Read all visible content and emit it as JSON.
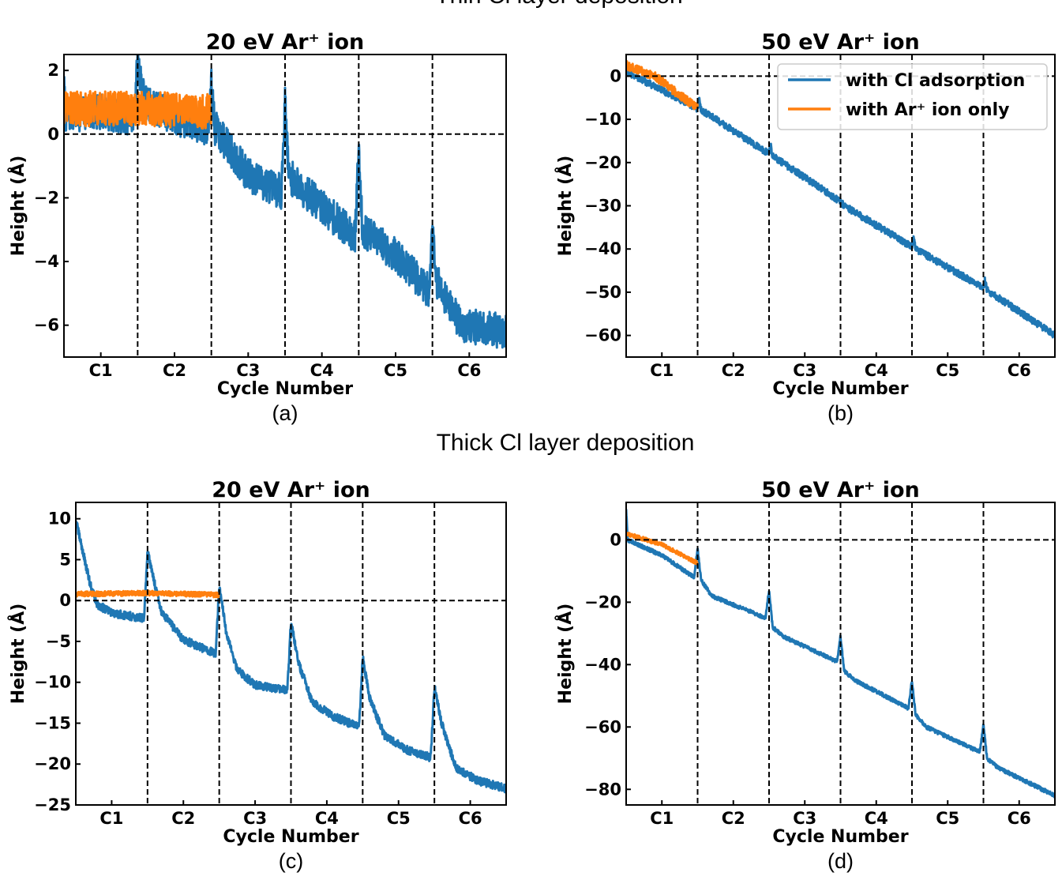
{
  "figure": {
    "section_titles": [
      "Thin Cl layer deposition",
      "Thick Cl layer deposition"
    ]
  },
  "colors": {
    "with_cl": "#1f77b4",
    "ar_only": "#ff7f0e"
  },
  "chart_data": [
    {
      "type": "line",
      "subplot_label": "(a)",
      "title": "20 eV Ar⁺ ion",
      "xlabel": "Cycle Number",
      "ylabel": "Height (Å)",
      "categories": [
        "C1",
        "C2",
        "C3",
        "C4",
        "C5",
        "C6"
      ],
      "xlim": [
        0.5,
        6.5
      ],
      "ylim": [
        -7,
        2.5
      ],
      "yticks": [
        2,
        0,
        -2,
        -4,
        -6
      ],
      "ytick_labels": [
        "2",
        "0",
        "−2",
        "−4",
        "−6"
      ],
      "cycle_boundaries": [
        1.5,
        2.5,
        3.5,
        4.5,
        5.5
      ],
      "reference_line_y": 0,
      "legend": null,
      "series": [
        {
          "name": "with Cl adsorption",
          "color_key": "with_cl",
          "noise": 0.55,
          "points": [
            [
              0.5,
              1.5
            ],
            [
              0.52,
              0.6
            ],
            [
              1.0,
              0.7
            ],
            [
              1.45,
              0.5
            ],
            [
              1.5,
              2.3
            ],
            [
              1.6,
              1.0
            ],
            [
              2.0,
              0.5
            ],
            [
              2.45,
              0.2
            ],
            [
              2.5,
              1.5
            ],
            [
              2.55,
              0.2
            ],
            [
              3.0,
              -1.3
            ],
            [
              3.45,
              -1.8
            ],
            [
              3.5,
              1.0
            ],
            [
              3.55,
              -1.3
            ],
            [
              4.0,
              -2.3
            ],
            [
              4.45,
              -3.2
            ],
            [
              4.5,
              -0.5
            ],
            [
              4.55,
              -3.0
            ],
            [
              5.0,
              -3.8
            ],
            [
              5.45,
              -4.9
            ],
            [
              5.5,
              -3.0
            ],
            [
              5.55,
              -4.6
            ],
            [
              5.9,
              -6.0
            ],
            [
              6.5,
              -6.2
            ]
          ]
        },
        {
          "name": "with Ar⁺ ion only",
          "color_key": "ar_only",
          "noise": 0.55,
          "points": [
            [
              0.5,
              0.8
            ],
            [
              1.5,
              0.8
            ],
            [
              2.5,
              0.7
            ]
          ]
        }
      ]
    },
    {
      "type": "line",
      "subplot_label": "(b)",
      "title": "50 eV Ar⁺ ion",
      "xlabel": "Cycle Number",
      "ylabel": "Height (Å)",
      "categories": [
        "C1",
        "C2",
        "C3",
        "C4",
        "C5",
        "C6"
      ],
      "xlim": [
        0.5,
        6.5
      ],
      "ylim": [
        -65,
        5
      ],
      "yticks": [
        0,
        -10,
        -20,
        -30,
        -40,
        -50,
        -60
      ],
      "ytick_labels": [
        "0",
        "−10",
        "−20",
        "−30",
        "−40",
        "−50",
        "−60"
      ],
      "cycle_boundaries": [
        1.5,
        2.5,
        3.5,
        4.5,
        5.5
      ],
      "reference_line_y": 0,
      "legend": {
        "location": "top-right",
        "entries": [
          "with Cl adsorption",
          "with Ar⁺ ion only"
        ]
      },
      "series": [
        {
          "name": "with Cl adsorption",
          "color_key": "with_cl",
          "noise": 0.8,
          "points": [
            [
              0.5,
              1.0
            ],
            [
              1.5,
              -7.5
            ],
            [
              1.52,
              -5.5
            ],
            [
              1.55,
              -7.8
            ],
            [
              2.5,
              -18
            ],
            [
              2.52,
              -15.5
            ],
            [
              2.55,
              -18.5
            ],
            [
              3.5,
              -29
            ],
            [
              3.55,
              -30
            ],
            [
              4.5,
              -39.5
            ],
            [
              4.52,
              -37.5
            ],
            [
              4.55,
              -40
            ],
            [
              5.5,
              -49
            ],
            [
              5.52,
              -47
            ],
            [
              5.55,
              -49.5
            ],
            [
              6.5,
              -60
            ]
          ]
        },
        {
          "name": "with Ar⁺ ion only",
          "color_key": "ar_only",
          "noise": 1.0,
          "points": [
            [
              0.5,
              2.5
            ],
            [
              0.9,
              0
            ],
            [
              1.5,
              -7.5
            ]
          ]
        }
      ]
    },
    {
      "type": "line",
      "subplot_label": "(c)",
      "title": "20 eV Ar⁺ ion",
      "xlabel": "Cycle Number",
      "ylabel": "Height (Å)",
      "categories": [
        "C1",
        "C2",
        "C3",
        "C4",
        "C5",
        "C6"
      ],
      "xlim": [
        0.5,
        6.5
      ],
      "ylim": [
        -25,
        12
      ],
      "yticks": [
        10,
        5,
        0,
        -5,
        -10,
        -15,
        -20,
        -25
      ],
      "ytick_labels": [
        "10",
        "5",
        "0",
        "−5",
        "−10",
        "−15",
        "−20",
        "−25"
      ],
      "cycle_boundaries": [
        1.5,
        2.5,
        3.5,
        4.5,
        5.5
      ],
      "reference_line_y": 0,
      "legend": null,
      "series": [
        {
          "name": "with Cl adsorption",
          "color_key": "with_cl",
          "noise": 0.5,
          "points": [
            [
              0.5,
              9.8
            ],
            [
              0.7,
              2.0
            ],
            [
              0.8,
              -0.5
            ],
            [
              1.0,
              -1.5
            ],
            [
              1.45,
              -2.2
            ],
            [
              1.5,
              6.0
            ],
            [
              1.6,
              2.0
            ],
            [
              1.7,
              -1.5
            ],
            [
              2.0,
              -4.8
            ],
            [
              2.45,
              -6.5
            ],
            [
              2.5,
              1.8
            ],
            [
              2.6,
              -4.0
            ],
            [
              2.75,
              -8.5
            ],
            [
              3.0,
              -10.3
            ],
            [
              3.45,
              -11.0
            ],
            [
              3.5,
              -2.5
            ],
            [
              3.6,
              -7.5
            ],
            [
              3.8,
              -12.5
            ],
            [
              4.1,
              -14.2
            ],
            [
              4.45,
              -15.5
            ],
            [
              4.5,
              -7.0
            ],
            [
              4.6,
              -12.0
            ],
            [
              4.8,
              -16.5
            ],
            [
              5.1,
              -18.2
            ],
            [
              5.45,
              -19.2
            ],
            [
              5.5,
              -10.5
            ],
            [
              5.6,
              -15.0
            ],
            [
              5.8,
              -20.5
            ],
            [
              6.1,
              -22.0
            ],
            [
              6.5,
              -23.0
            ]
          ]
        },
        {
          "name": "with Ar⁺ ion only",
          "color_key": "ar_only",
          "noise": 0.3,
          "points": [
            [
              0.5,
              0.8
            ],
            [
              1.5,
              0.9
            ],
            [
              2.5,
              0.7
            ]
          ]
        }
      ]
    },
    {
      "type": "line",
      "subplot_label": "(d)",
      "title": "50 eV Ar⁺ ion",
      "xlabel": "Cycle Number",
      "ylabel": "Height (Å)",
      "categories": [
        "C1",
        "C2",
        "C3",
        "C4",
        "C5",
        "C6"
      ],
      "xlim": [
        0.5,
        6.5
      ],
      "ylim": [
        -85,
        12
      ],
      "yticks": [
        0,
        -20,
        -40,
        -60,
        -80
      ],
      "ytick_labels": [
        "0",
        "−20",
        "−40",
        "−60",
        "−80"
      ],
      "cycle_boundaries": [
        1.5,
        2.5,
        3.5,
        4.5,
        5.5
      ],
      "reference_line_y": 0,
      "legend": null,
      "series": [
        {
          "name": "with Cl adsorption",
          "color_key": "with_cl",
          "noise": 0.6,
          "points": [
            [
              0.5,
              10
            ],
            [
              0.52,
              0
            ],
            [
              1.0,
              -5
            ],
            [
              1.45,
              -12
            ],
            [
              1.5,
              -3
            ],
            [
              1.55,
              -13
            ],
            [
              1.7,
              -18
            ],
            [
              2.45,
              -25
            ],
            [
              2.5,
              -16
            ],
            [
              2.55,
              -28
            ],
            [
              2.7,
              -31
            ],
            [
              3.45,
              -39
            ],
            [
              3.5,
              -31
            ],
            [
              3.55,
              -42
            ],
            [
              3.7,
              -45
            ],
            [
              4.45,
              -54
            ],
            [
              4.5,
              -45
            ],
            [
              4.55,
              -56
            ],
            [
              4.7,
              -60
            ],
            [
              5.45,
              -68
            ],
            [
              5.5,
              -59
            ],
            [
              5.55,
              -70
            ],
            [
              5.7,
              -73
            ],
            [
              6.5,
              -82
            ]
          ]
        },
        {
          "name": "with Ar⁺ ion only",
          "color_key": "ar_only",
          "noise": 0.6,
          "points": [
            [
              0.5,
              2
            ],
            [
              1.0,
              -1.5
            ],
            [
              1.5,
              -7.5
            ]
          ]
        }
      ]
    }
  ]
}
